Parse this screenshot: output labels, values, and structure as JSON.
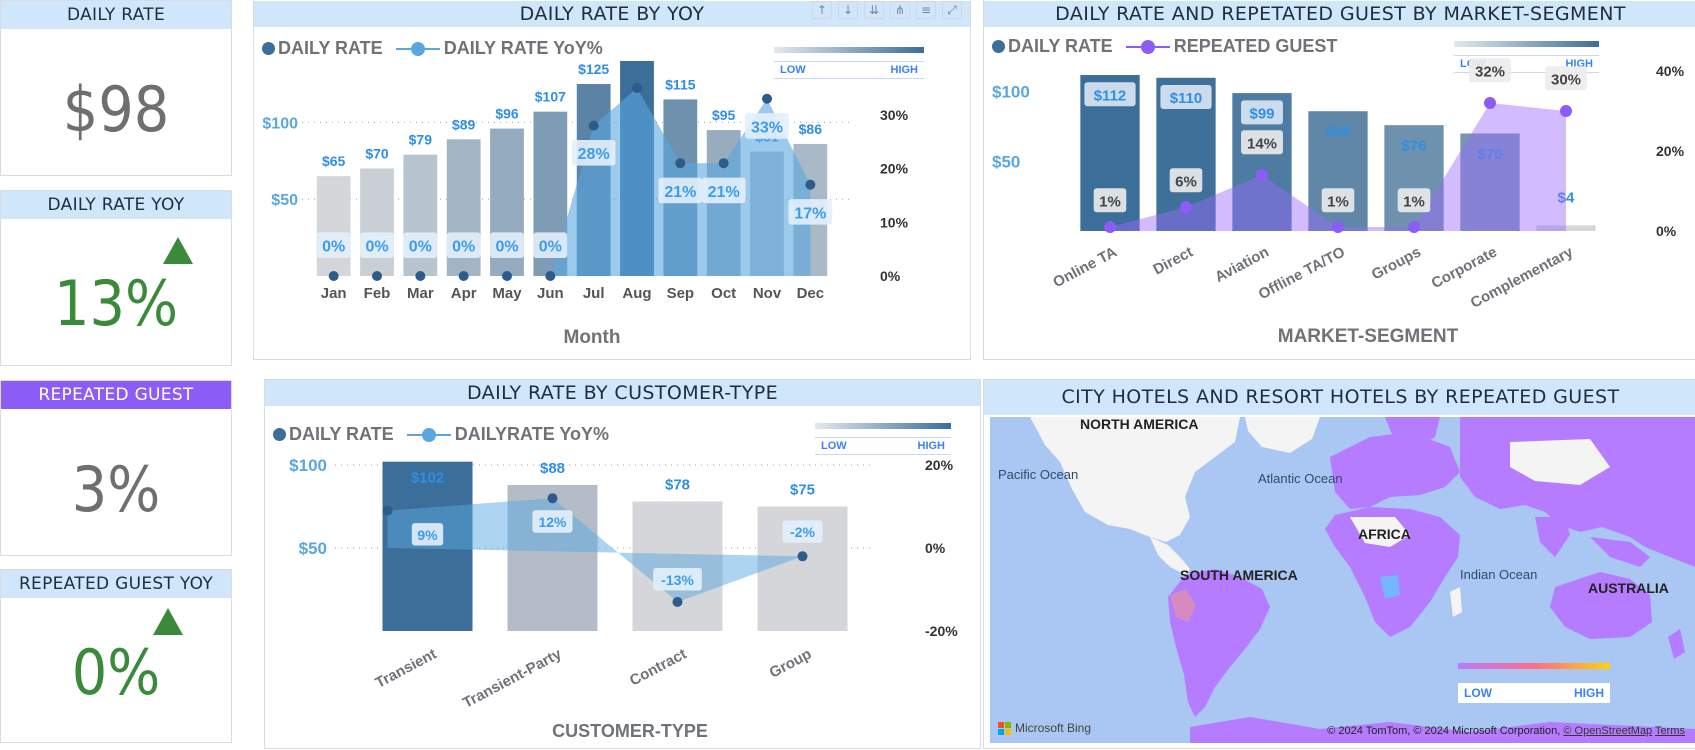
{
  "kpis": {
    "daily_rate": {
      "title": "DAILY RATE",
      "value": "$98"
    },
    "daily_rate_yoy": {
      "title": "DAILY RATE YOY",
      "value": "13%"
    },
    "repeated_guest": {
      "title": "REPEATED GUEST",
      "value": "3%"
    },
    "repeated_guest_yoy": {
      "title": "REPEATED GUEST YOY",
      "value": "0%"
    }
  },
  "colors": {
    "accent": "#3b6e99",
    "light_blue": "#5aa7e0",
    "purple": "#8b5cf6",
    "green": "#3b8a3c",
    "header": "#cfe6fb"
  },
  "legend_scale": {
    "low": "LOW",
    "high": "HIGH"
  },
  "chart_data": [
    {
      "id": "rate_by_yoy",
      "type": "bar",
      "title": "DAILY RATE BY YOY",
      "xlabel": "Month",
      "series_labels": {
        "bars": "DAILY RATE",
        "line": "DAILY RATE YoY%"
      },
      "categories": [
        "Jan",
        "Feb",
        "Mar",
        "Apr",
        "May",
        "Jun",
        "Jul",
        "Aug",
        "Sep",
        "Oct",
        "Nov",
        "Dec"
      ],
      "values": [
        65,
        70,
        79,
        89,
        96,
        107,
        125,
        140,
        115,
        95,
        81,
        86
      ],
      "value_labels": [
        "$65",
        "$70",
        "$79",
        "$89",
        "$96",
        "$107",
        "$125",
        "",
        "$115",
        "$95",
        "$81",
        "$86"
      ],
      "yoy": [
        0,
        0,
        0,
        0,
        0,
        0,
        28,
        35,
        21,
        21,
        33,
        17
      ],
      "yoy_labels": [
        "0%",
        "0%",
        "0%",
        "0%",
        "0%",
        "0%",
        "28%",
        "",
        "21%",
        "21%",
        "33%",
        "17%"
      ],
      "y_ticks": [
        "$100",
        "$50"
      ],
      "y2_ticks": [
        "30%",
        "20%",
        "10%",
        "0%"
      ],
      "ylim": [
        0,
        140
      ],
      "y2lim": [
        0,
        35
      ]
    },
    {
      "id": "rate_by_segment",
      "type": "bar",
      "title": "DAILY RATE AND REPETATED GUEST BY MARKET-SEGMENT",
      "xlabel": "MARKET-SEGMENT",
      "series_labels": {
        "bars": "DAILY RATE",
        "line": "REPEATED GUEST"
      },
      "categories": [
        "Online TA",
        "Direct",
        "Aviation",
        "Offline TA/TO",
        "Groups",
        "Corporate",
        "Complementary"
      ],
      "values": [
        112,
        110,
        99,
        86,
        76,
        70,
        4
      ],
      "value_labels": [
        "$112",
        "$110",
        "$99",
        "$86",
        "$76",
        "$70",
        "$4"
      ],
      "repeated": [
        1,
        6,
        14,
        1,
        1,
        32,
        30
      ],
      "repeated_labels": [
        "1%",
        "6%",
        "14%",
        "1%",
        "1%",
        "32%",
        "30%"
      ],
      "y_ticks": [
        "$100",
        "$50"
      ],
      "y2_ticks": [
        "40%",
        "20%",
        "0%"
      ],
      "ylim": [
        0,
        112
      ],
      "y2lim": [
        0,
        40
      ]
    },
    {
      "id": "rate_by_customer",
      "type": "bar",
      "title": "DAILY RATE BY CUSTOMER-TYPE",
      "xlabel": "CUSTOMER-TYPE",
      "series_labels": {
        "bars": "DAILY RATE",
        "line": "DAILYRATE  YoY%"
      },
      "categories": [
        "Transient",
        "Transient-Party",
        "Contract",
        "Group"
      ],
      "values": [
        102,
        88,
        78,
        75
      ],
      "value_labels": [
        "$102",
        "$88",
        "$78",
        "$75"
      ],
      "yoy": [
        9,
        12,
        -13,
        -2
      ],
      "yoy_labels": [
        "9%",
        "12%",
        "-13%",
        "-2%"
      ],
      "y_ticks": [
        "$100",
        "$50"
      ],
      "y2_ticks": [
        "20%",
        "0%",
        "-20%"
      ],
      "ylim": [
        0,
        100
      ],
      "y2lim": [
        -20,
        20
      ]
    }
  ],
  "map": {
    "title": "CITY HOTELS AND RESORT HOTELS BY REPEATED GUEST",
    "labels": [
      "NORTH AMERICA",
      "Pacific Ocean",
      "Atlantic Ocean",
      "AFRICA",
      "SOUTH AMERICA",
      "Indian Ocean",
      "AUSTRALIA"
    ],
    "bing": "Microsoft Bing",
    "attribution_text": "© 2024 TomTom, © 2024 Microsoft Corporation,",
    "attribution_osm": "© OpenStreetMap",
    "attribution_terms": "Terms"
  }
}
